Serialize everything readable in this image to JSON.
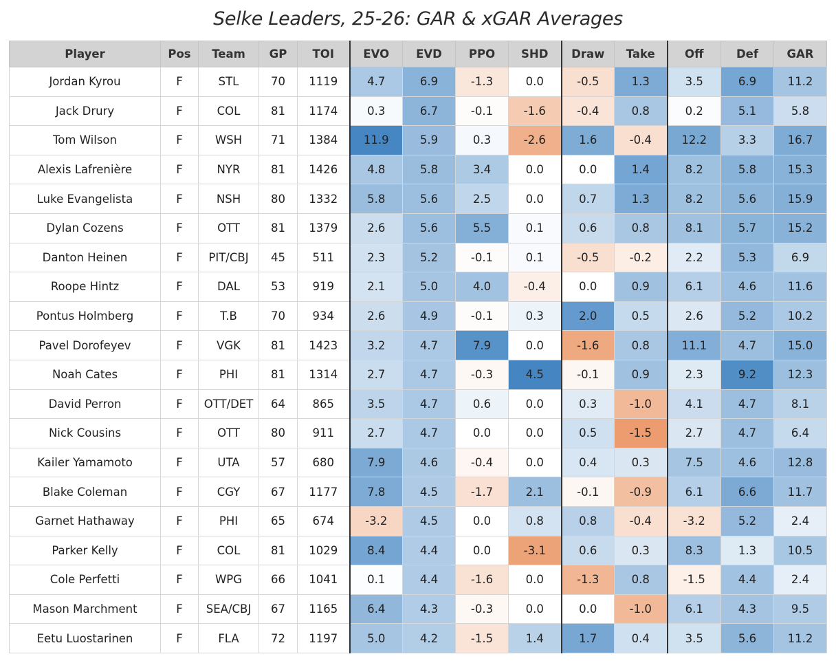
{
  "title": "Selke Leaders, 25-26: GAR & xGAR Averages",
  "columns": [
    "Player",
    "Pos",
    "Team",
    "GP",
    "TOI",
    "EVO",
    "EVD",
    "PPO",
    "SHD",
    "Draw",
    "Take",
    "Off",
    "Def",
    "GAR"
  ],
  "scale": {
    "positive_color": "#3a7fbf",
    "negative_color": "#e57a3c",
    "neutral_color": "#ffffff",
    "header_bg": "#d3d3d3",
    "ranges": {
      "EVO": 12,
      "EVD": 12,
      "PPO": 9,
      "SHD": 4.5,
      "Draw": 2.5,
      "Take": 2,
      "Off": 18,
      "Def": 10,
      "GAR": 26
    }
  },
  "rows": [
    [
      "Jordan Kyrou",
      "F",
      "STL",
      "70",
      "1119",
      "4.7",
      "6.9",
      "-1.3",
      "0.0",
      "-0.5",
      "1.3",
      "3.5",
      "6.9",
      "11.2"
    ],
    [
      "Jack Drury",
      "F",
      "COL",
      "81",
      "1174",
      "0.3",
      "6.7",
      "-0.1",
      "-1.6",
      "-0.4",
      "0.8",
      "0.2",
      "5.1",
      "5.8"
    ],
    [
      "Tom Wilson",
      "F",
      "WSH",
      "71",
      "1384",
      "11.9",
      "5.9",
      "0.3",
      "-2.6",
      "1.6",
      "-0.4",
      "12.2",
      "3.3",
      "16.7"
    ],
    [
      "Alexis Lafrenière",
      "F",
      "NYR",
      "81",
      "1426",
      "4.8",
      "5.8",
      "3.4",
      "0.0",
      "0.0",
      "1.4",
      "8.2",
      "5.8",
      "15.3"
    ],
    [
      "Luke Evangelista",
      "F",
      "NSH",
      "80",
      "1332",
      "5.8",
      "5.6",
      "2.5",
      "0.0",
      "0.7",
      "1.3",
      "8.2",
      "5.6",
      "15.9"
    ],
    [
      "Dylan Cozens",
      "F",
      "OTT",
      "81",
      "1379",
      "2.6",
      "5.6",
      "5.5",
      "0.1",
      "0.6",
      "0.8",
      "8.1",
      "5.7",
      "15.2"
    ],
    [
      "Danton Heinen",
      "F",
      "PIT/CBJ",
      "45",
      "511",
      "2.3",
      "5.2",
      "-0.1",
      "0.1",
      "-0.5",
      "-0.2",
      "2.2",
      "5.3",
      "6.9"
    ],
    [
      "Roope Hintz",
      "F",
      "DAL",
      "53",
      "919",
      "2.1",
      "5.0",
      "4.0",
      "-0.4",
      "0.0",
      "0.9",
      "6.1",
      "4.6",
      "11.6"
    ],
    [
      "Pontus Holmberg",
      "F",
      "T.B",
      "70",
      "934",
      "2.6",
      "4.9",
      "-0.1",
      "0.3",
      "2.0",
      "0.5",
      "2.6",
      "5.2",
      "10.2"
    ],
    [
      "Pavel Dorofeyev",
      "F",
      "VGK",
      "81",
      "1423",
      "3.2",
      "4.7",
      "7.9",
      "0.0",
      "-1.6",
      "0.8",
      "11.1",
      "4.7",
      "15.0"
    ],
    [
      "Noah Cates",
      "F",
      "PHI",
      "81",
      "1314",
      "2.7",
      "4.7",
      "-0.3",
      "4.5",
      "-0.1",
      "0.9",
      "2.3",
      "9.2",
      "12.3"
    ],
    [
      "David Perron",
      "F",
      "OTT/DET",
      "64",
      "865",
      "3.5",
      "4.7",
      "0.6",
      "0.0",
      "0.3",
      "-1.0",
      "4.1",
      "4.7",
      "8.1"
    ],
    [
      "Nick Cousins",
      "F",
      "OTT",
      "80",
      "911",
      "2.7",
      "4.7",
      "0.0",
      "0.0",
      "0.5",
      "-1.5",
      "2.7",
      "4.7",
      "6.4"
    ],
    [
      "Kailer Yamamoto",
      "F",
      "UTA",
      "57",
      "680",
      "7.9",
      "4.6",
      "-0.4",
      "0.0",
      "0.4",
      "0.3",
      "7.5",
      "4.6",
      "12.8"
    ],
    [
      "Blake Coleman",
      "F",
      "CGY",
      "67",
      "1177",
      "7.8",
      "4.5",
      "-1.7",
      "2.1",
      "-0.1",
      "-0.9",
      "6.1",
      "6.6",
      "11.7"
    ],
    [
      "Garnet Hathaway",
      "F",
      "PHI",
      "65",
      "674",
      "-3.2",
      "4.5",
      "0.0",
      "0.8",
      "0.8",
      "-0.4",
      "-3.2",
      "5.2",
      "2.4"
    ],
    [
      "Parker Kelly",
      "F",
      "COL",
      "81",
      "1029",
      "8.4",
      "4.4",
      "0.0",
      "-3.1",
      "0.6",
      "0.3",
      "8.3",
      "1.3",
      "10.5"
    ],
    [
      "Cole Perfetti",
      "F",
      "WPG",
      "66",
      "1041",
      "0.1",
      "4.4",
      "-1.6",
      "0.0",
      "-1.3",
      "0.8",
      "-1.5",
      "4.4",
      "2.4"
    ],
    [
      "Mason Marchment",
      "F",
      "SEA/CBJ",
      "67",
      "1165",
      "6.4",
      "4.3",
      "-0.3",
      "0.0",
      "0.0",
      "-1.0",
      "6.1",
      "4.3",
      "9.5"
    ],
    [
      "Eetu Luostarinen",
      "F",
      "FLA",
      "72",
      "1197",
      "5.0",
      "4.2",
      "-1.5",
      "1.4",
      "1.7",
      "0.4",
      "3.5",
      "5.6",
      "11.2"
    ]
  ]
}
